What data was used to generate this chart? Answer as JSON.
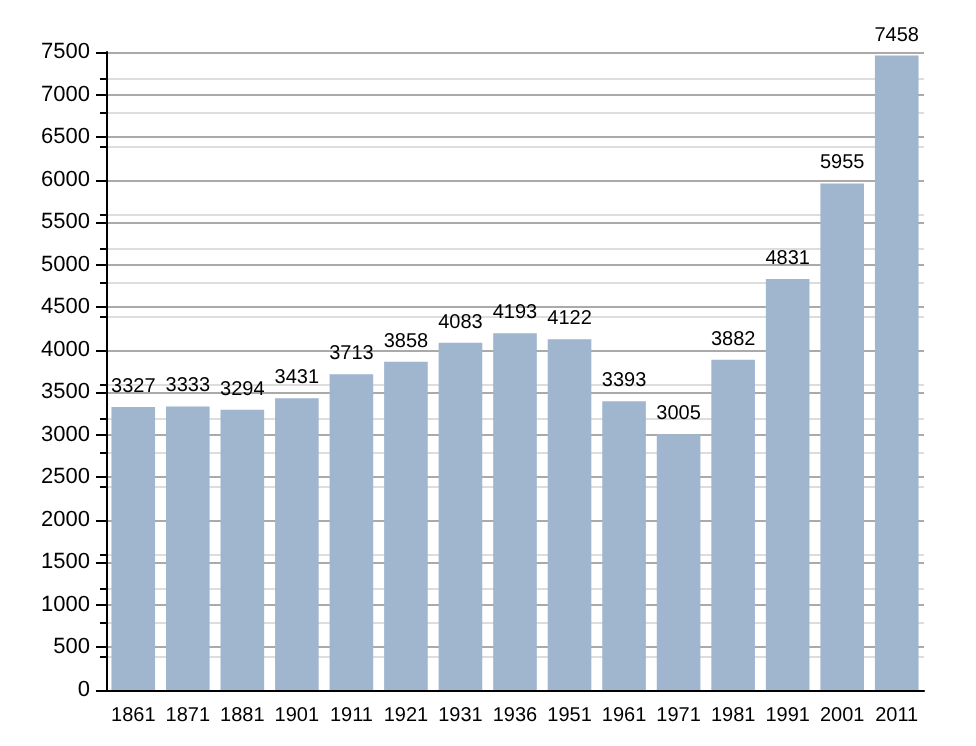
{
  "chart_data": {
    "type": "bar",
    "categories": [
      "1861",
      "1871",
      "1881",
      "1901",
      "1911",
      "1921",
      "1931",
      "1936",
      "1951",
      "1961",
      "1971",
      "1981",
      "1991",
      "2001",
      "2011"
    ],
    "values": [
      3327,
      3333,
      3294,
      3431,
      3713,
      3858,
      4083,
      4193,
      4122,
      3393,
      3005,
      3882,
      4831,
      5955,
      7458
    ],
    "color": "#a0b6cf",
    "data_labels": true,
    "grid": "y",
    "ylim": [
      0,
      7500
    ],
    "yticks": [
      0,
      500,
      1000,
      1500,
      2000,
      2500,
      3000,
      3500,
      4000,
      4500,
      5000,
      5500,
      6000,
      6500,
      7000,
      7500
    ]
  }
}
